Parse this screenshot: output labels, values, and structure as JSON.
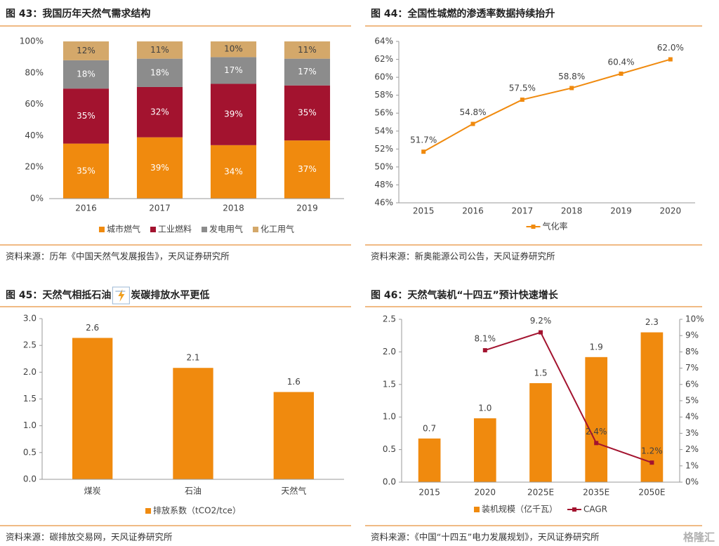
{
  "chart_data": [
    {
      "type": "stacked_bar",
      "title": "图 43：我国历年天然气需求结构",
      "categories": [
        "2016",
        "2017",
        "2018",
        "2019"
      ],
      "series": [
        {
          "name": "城市燃气",
          "color": "#f08a0e",
          "values": [
            35,
            39,
            34,
            37
          ],
          "value_labels": [
            "35%",
            "39%",
            "34%",
            "37%"
          ]
        },
        {
          "name": "工业燃料",
          "color": "#a3132f",
          "values": [
            35,
            32,
            39,
            35
          ],
          "value_labels": [
            "35%",
            "32%",
            "39%",
            "35%"
          ]
        },
        {
          "name": "发电用气",
          "color": "#8c8c8c",
          "values": [
            18,
            18,
            17,
            17
          ],
          "value_labels": [
            "18%",
            "18%",
            "17%",
            "17%"
          ]
        },
        {
          "name": "化工用气",
          "color": "#d4a86a",
          "values": [
            12,
            11,
            10,
            11
          ],
          "value_labels": [
            "12%",
            "11%",
            "10%",
            "11%"
          ]
        }
      ],
      "ylim": [
        0,
        100
      ],
      "yticks": [
        {
          "value": 0,
          "label": "0%"
        },
        {
          "value": 20,
          "label": "20%"
        },
        {
          "value": 40,
          "label": "40%"
        },
        {
          "value": 60,
          "label": "60%"
        },
        {
          "value": 80,
          "label": "80%"
        },
        {
          "value": 100,
          "label": "100%"
        }
      ],
      "legend_position": "bottom",
      "source": "资料来源：历年《中国天然气发展报告》，天风证券研究所"
    },
    {
      "type": "line",
      "title": "图 44：全国性城燃的渗透率数据持续抬升",
      "categories": [
        "2015",
        "2016",
        "2017",
        "2018",
        "2019",
        "2020"
      ],
      "series": [
        {
          "name": "气化率",
          "color": "#f08a0e",
          "values": [
            51.7,
            54.8,
            57.5,
            58.8,
            60.4,
            62.0
          ],
          "value_labels": [
            "51.7%",
            "54.8%",
            "57.5%",
            "58.8%",
            "60.4%",
            "62.0%"
          ]
        }
      ],
      "ylim": [
        46,
        64
      ],
      "yticks": [
        {
          "value": 46,
          "label": "46%"
        },
        {
          "value": 48,
          "label": "48%"
        },
        {
          "value": 50,
          "label": "50%"
        },
        {
          "value": 52,
          "label": "52%"
        },
        {
          "value": 54,
          "label": "54%"
        },
        {
          "value": 56,
          "label": "56%"
        },
        {
          "value": 58,
          "label": "58%"
        },
        {
          "value": 60,
          "label": "60%"
        },
        {
          "value": 62,
          "label": "62%"
        },
        {
          "value": 64,
          "label": "64%"
        }
      ],
      "legend_position": "bottom",
      "source": "资料来源：新奥能源公司公告，天风证券研究所"
    },
    {
      "type": "bar",
      "title": [
        "图 45：天然气相抵石油",
        "炭碳排放水平更低"
      ],
      "categories": [
        "煤炭",
        "石油",
        "天然气"
      ],
      "series": [
        {
          "name": "排放系数（tCO2/tce）",
          "color": "#f08a0e",
          "values": [
            2.64,
            2.08,
            1.63
          ],
          "value_labels": [
            "2.6",
            "2.1",
            "1.6"
          ]
        }
      ],
      "ylim": [
        0,
        3
      ],
      "yticks": [
        {
          "value": 0,
          "label": "0.0"
        },
        0.5,
        {
          "value": 1,
          "label": "1.0"
        },
        1.5,
        {
          "value": 2,
          "label": "2.0"
        },
        2.5,
        {
          "value": 3,
          "label": "3.0"
        }
      ],
      "legend_position": "bottom",
      "source": "资料来源：碳排放交易网，天风证券研究所"
    },
    {
      "type": "bar_line",
      "title": "图 46：天然气装机“十四五”预计快速增长",
      "categories": [
        "2015",
        "2020",
        "2025E",
        "2035E",
        "2050E"
      ],
      "series": [
        {
          "name": "装机规模（亿千瓦）",
          "color": "#f08a0e",
          "values": [
            0.67,
            0.98,
            1.52,
            1.92,
            2.3
          ],
          "value_labels": [
            "0.7",
            "1.0",
            "1.5",
            "1.9",
            "2.3"
          ]
        },
        {
          "name": "CAGR",
          "color": "#a3132f",
          "axis": "y2",
          "values": [
            null,
            8.1,
            9.2,
            2.4,
            1.2
          ],
          "value_labels": [
            null,
            "8.1%",
            "9.2%",
            "2.4%",
            "1.2%"
          ]
        }
      ],
      "ylim": [
        0,
        2.5
      ],
      "yticks": [
        {
          "value": 0,
          "label": "0.0"
        },
        0.5,
        {
          "value": 1,
          "label": "1.0"
        },
        1.5,
        {
          "value": 2,
          "label": "2.0"
        },
        2.5
      ],
      "y2lim": [
        0,
        10
      ],
      "y2ticks": [
        {
          "value": 0,
          "label": "0%"
        },
        {
          "value": 1,
          "label": "1%"
        },
        {
          "value": 2,
          "label": "2%"
        },
        {
          "value": 3,
          "label": "3%"
        },
        {
          "value": 4,
          "label": "4%"
        },
        {
          "value": 5,
          "label": "5%"
        },
        {
          "value": 6,
          "label": "6%"
        },
        {
          "value": 7,
          "label": "7%"
        },
        {
          "value": 8,
          "label": "8%"
        },
        {
          "value": 9,
          "label": "9%"
        },
        {
          "value": 10,
          "label": "10%"
        }
      ],
      "legend_position": "bottom",
      "source": "资料来源：《中国“十四五”电力发展规划》，天风证券研究所"
    }
  ],
  "watermark": "格隆汇"
}
